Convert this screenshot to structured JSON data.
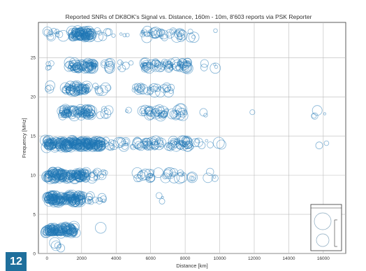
{
  "badge": {
    "label": "12",
    "color": "#1f6f9c"
  },
  "chart_data": {
    "type": "scatter",
    "title": "Reported SNRs of DK8OK's Signal vs. Distance, 160m - 10m, 8'603 reports via PSK Reporter",
    "xlabel": "Distance [km]",
    "ylabel": "Frequency [MHz]",
    "xlim": [
      -500,
      17300
    ],
    "ylim": [
      0,
      29.5
    ],
    "xticks": [
      0,
      2000,
      4000,
      6000,
      8000,
      10000,
      12000,
      14000,
      16000
    ],
    "yticks": [
      0,
      5,
      10,
      15,
      20,
      25
    ],
    "grid": true,
    "marker": "open circle (radius encodes SNR)",
    "color": "#1f77b4",
    "clusters": [
      {
        "f": 28,
        "x0": 0,
        "x1": 1000,
        "n": 12
      },
      {
        "f": 28,
        "x0": 1400,
        "x1": 2600,
        "n": 90
      },
      {
        "f": 28,
        "x0": 2800,
        "x1": 4800,
        "n": 10
      },
      {
        "f": 28,
        "x0": 5500,
        "x1": 7900,
        "n": 35
      },
      {
        "f": 28,
        "x0": 8200,
        "x1": 10000,
        "n": 5
      },
      {
        "f": 24,
        "x0": 0,
        "x1": 300,
        "n": 4
      },
      {
        "f": 24,
        "x0": 1200,
        "x1": 2800,
        "n": 70
      },
      {
        "f": 24,
        "x0": 3000,
        "x1": 5000,
        "n": 14
      },
      {
        "f": 24,
        "x0": 5500,
        "x1": 8200,
        "n": 70
      },
      {
        "f": 24,
        "x0": 8500,
        "x1": 10000,
        "n": 5
      },
      {
        "f": 21,
        "x0": 0,
        "x1": 200,
        "n": 3
      },
      {
        "f": 21,
        "x0": 1000,
        "x1": 2400,
        "n": 60
      },
      {
        "f": 21,
        "x0": 2800,
        "x1": 3600,
        "n": 7
      },
      {
        "f": 21,
        "x0": 5000,
        "x1": 7400,
        "n": 30
      },
      {
        "f": 18,
        "x0": 800,
        "x1": 2600,
        "n": 90
      },
      {
        "f": 18,
        "x0": 3000,
        "x1": 3600,
        "n": 6
      },
      {
        "f": 18,
        "x0": 4500,
        "x1": 5000,
        "n": 2
      },
      {
        "f": 18,
        "x0": 5500,
        "x1": 8000,
        "n": 45
      },
      {
        "f": 18,
        "x0": 9000,
        "x1": 9500,
        "n": 2
      },
      {
        "f": 18,
        "x0": 11800,
        "x1": 12200,
        "n": 1
      },
      {
        "f": 18,
        "x0": 15400,
        "x1": 15700,
        "n": 3
      },
      {
        "f": 18,
        "x0": 16000,
        "x1": 16200,
        "n": 1
      },
      {
        "f": 14,
        "x0": -100,
        "x1": 3200,
        "n": 260
      },
      {
        "f": 14,
        "x0": 3300,
        "x1": 5000,
        "n": 18
      },
      {
        "f": 14,
        "x0": 5200,
        "x1": 8400,
        "n": 70
      },
      {
        "f": 14,
        "x0": 8500,
        "x1": 10200,
        "n": 8
      },
      {
        "f": 14,
        "x0": 15400,
        "x1": 16200,
        "n": 2
      },
      {
        "f": 10,
        "x0": 0,
        "x1": 2300,
        "n": 150
      },
      {
        "f": 10,
        "x0": 2400,
        "x1": 3400,
        "n": 12
      },
      {
        "f": 10,
        "x0": 5200,
        "x1": 8000,
        "n": 30
      },
      {
        "f": 10,
        "x0": 8200,
        "x1": 9800,
        "n": 8
      },
      {
        "f": 7,
        "x0": 0,
        "x1": 2000,
        "n": 170
      },
      {
        "f": 7,
        "x0": 2000,
        "x1": 3400,
        "n": 14
      },
      {
        "f": 7,
        "x0": 6300,
        "x1": 6900,
        "n": 3
      },
      {
        "f": 3,
        "x0": -100,
        "x1": 1700,
        "n": 130
      },
      {
        "f": 3,
        "x0": 3100,
        "x1": 3300,
        "n": 1
      },
      {
        "f": 1,
        "x0": 400,
        "x1": 800,
        "n": 5
      }
    ]
  }
}
